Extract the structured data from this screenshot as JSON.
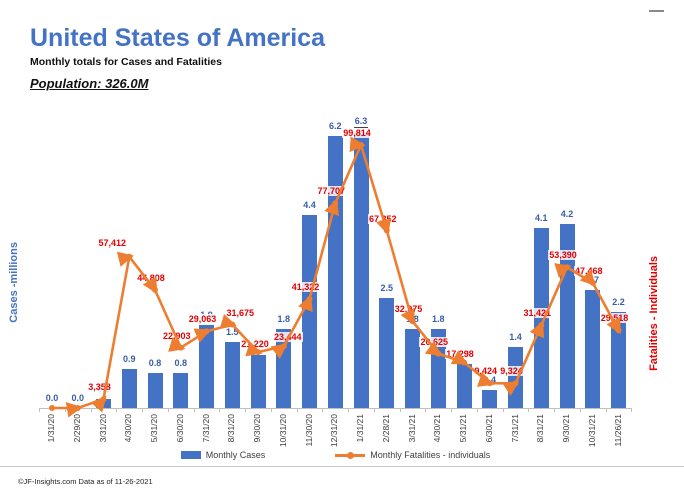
{
  "header": {
    "title": "United States of America",
    "subtitle": "Monthly totals for Cases and Fatalities",
    "population": "Population: 326.0M"
  },
  "axes": {
    "left_title": "Cases -millions",
    "right_title": "Fatalities - Individuals"
  },
  "legend": {
    "cases": "Monthly Cases",
    "fatalities": "Monthly Fatalities - individuals"
  },
  "footer": {
    "text": "©JF-Insights.com  Data as of 11-26-2021"
  },
  "colors": {
    "bar": "#4472C4",
    "line": "#ED7D31",
    "case_label": "#3A5CA8",
    "fatality_label": "#E60000",
    "title": "#4472C4"
  },
  "chart_data": {
    "type": "bar",
    "subtype": "bar+line combo, dual axis",
    "title": "United States of America - Monthly totals for Cases and Fatalities",
    "xlabel": "",
    "ylabel_left": "Cases -millions",
    "ylabel_right": "Fatalities - Individuals",
    "gridlines": false,
    "legend_position": "bottom",
    "left_axis_range": [
      0,
      7.0
    ],
    "right_axis_range": [
      0,
      116500
    ],
    "categories": [
      "1/31/20",
      "2/29/20",
      "3/31/20",
      "4/30/20",
      "5/31/20",
      "6/30/20",
      "7/31/20",
      "8/31/20",
      "9/30/20",
      "10/31/20",
      "11/30/20",
      "12/31/20",
      "1/31/21",
      "2/28/21",
      "3/31/21",
      "4/30/21",
      "5/31/21",
      "6/30/21",
      "7/31/21",
      "8/31/21",
      "9/30/21",
      "10/31/21",
      "11/26/21"
    ],
    "series": [
      {
        "name": "Monthly Cases",
        "type": "bar",
        "axis": "left",
        "unit": "millions",
        "values": [
          0.0,
          0.0,
          0.2,
          0.9,
          0.8,
          0.8,
          1.9,
          1.5,
          1.2,
          1.8,
          4.4,
          6.2,
          6.3,
          2.5,
          1.8,
          1.8,
          1.0,
          0.4,
          1.4,
          4.1,
          4.2,
          2.7,
          2.2
        ],
        "labels": [
          "0.0",
          "0.0",
          "0.2",
          "0.9",
          "0.8",
          "0.8",
          "1.9",
          "1.5",
          "1.2",
          "1.8",
          "4.4",
          "6.2",
          "6.3",
          "2.5",
          "1.8",
          "1.8",
          "1.0",
          "0.4",
          "1.4",
          "4.1",
          "4.2",
          "2.7",
          "2.2"
        ],
        "underline_label_index": 12
      },
      {
        "name": "Monthly Fatalities - individuals",
        "type": "line",
        "axis": "right",
        "unit": "individuals",
        "values": [
          0,
          0,
          3358,
          57412,
          44808,
          22903,
          29063,
          31675,
          21220,
          23444,
          41322,
          77707,
          99814,
          67352,
          32975,
          20625,
          17298,
          9424,
          9324,
          31421,
          53390,
          47468,
          29518
        ],
        "labels": [
          "",
          "",
          "3,358",
          "57,412",
          "44,808",
          "22,903",
          "29,063",
          "31,675",
          "21,220",
          "23,444",
          "41,322",
          "77,707",
          "99,814",
          "67,352",
          "32,975",
          "20,625",
          "17,298",
          "9,424",
          "9,324",
          "31,421",
          "53,390",
          "47,468",
          "29,518"
        ]
      }
    ]
  }
}
